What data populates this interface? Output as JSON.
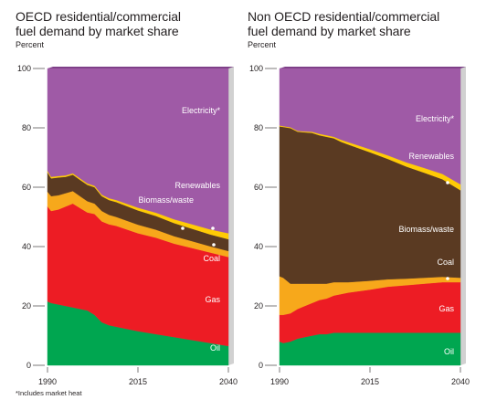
{
  "footnote": "*Includes market heat",
  "chart_data": [
    {
      "type": "area",
      "stacked": true,
      "title_line1": "OECD residential/commercial",
      "title_line2": "fuel demand by market share",
      "ylabel": "Percent",
      "ylim": [
        0,
        100
      ],
      "yticks": [
        "0",
        "20",
        "40",
        "60",
        "80",
        "100"
      ],
      "xticks": [
        "1990",
        "2015",
        "2040"
      ],
      "x": [
        1990,
        1991,
        1993,
        1995,
        1997,
        1999,
        2001,
        2003,
        2005,
        2007,
        2009,
        2015,
        2020,
        2025,
        2030,
        2035,
        2040
      ],
      "series": [
        {
          "name": "Oil",
          "color": "#00a650",
          "values": [
            21.5,
            21,
            20.5,
            20,
            19.5,
            19,
            18.5,
            17,
            14.5,
            13.5,
            13,
            11.5,
            10.5,
            9.5,
            8.5,
            7.5,
            6.5
          ]
        },
        {
          "name": "Gas",
          "color": "#ed1c24",
          "values": [
            32,
            31,
            32,
            33.5,
            35,
            34,
            33,
            34,
            34,
            34,
            34,
            33,
            32.5,
            31.5,
            31,
            30.5,
            30
          ]
        },
        {
          "name": "Coal",
          "color": "#f7a81b",
          "values": [
            5,
            5,
            4.8,
            4.5,
            4.2,
            4,
            3.8,
            3.5,
            3.5,
            3.2,
            3,
            2.9,
            2.7,
            2.5,
            2.3,
            2.1,
            2
          ]
        },
        {
          "name": "Biomass/waste",
          "color": "#5a3a22",
          "values": [
            6.5,
            6,
            6,
            5.5,
            5.5,
            5.5,
            5.5,
            5.5,
            5,
            5,
            5,
            4.8,
            4.6,
            4.4,
            4.2,
            4,
            4
          ]
        },
        {
          "name": "Renewables",
          "color": "#ffcb05",
          "values": [
            0.5,
            0.5,
            0.5,
            0.5,
            0.5,
            0.5,
            0.5,
            0.5,
            0.5,
            0.6,
            0.7,
            0.9,
            1.1,
            1.3,
            1.5,
            1.7,
            2
          ]
        },
        {
          "name": "Electricity*",
          "color": "#9f5aa6",
          "values": [
            34.5,
            36.5,
            36.2,
            36,
            35.3,
            37,
            38.7,
            39.5,
            42.5,
            43.7,
            44.3,
            46.9,
            48.6,
            50.8,
            52.5,
            54.2,
            55.5
          ]
        }
      ]
    },
    {
      "type": "area",
      "stacked": true,
      "title_line1": "Non OECD residential/commercial",
      "title_line2": "fuel demand by market share",
      "ylabel": "Percent",
      "ylim": [
        0,
        100
      ],
      "yticks": [
        "0",
        "20",
        "40",
        "60",
        "80",
        "100"
      ],
      "xticks": [
        "1990",
        "2015",
        "2040"
      ],
      "x": [
        1990,
        1991,
        1993,
        1995,
        1997,
        1999,
        2001,
        2003,
        2005,
        2007,
        2009,
        2015,
        2020,
        2025,
        2030,
        2035,
        2040
      ],
      "series": [
        {
          "name": "Oil",
          "color": "#00a650",
          "values": [
            8,
            7.5,
            8,
            9,
            9.5,
            10,
            10.5,
            10.5,
            11,
            11,
            11,
            11,
            11,
            11,
            11,
            11,
            11
          ]
        },
        {
          "name": "Gas",
          "color": "#ed1c24",
          "values": [
            9,
            9.5,
            9.5,
            10,
            10.5,
            11,
            11.5,
            12,
            12.5,
            13,
            13.5,
            14.5,
            15.5,
            16,
            16.5,
            17,
            17
          ]
        },
        {
          "name": "Coal",
          "color": "#f7a81b",
          "values": [
            13,
            12.5,
            10,
            8.5,
            7.5,
            6.5,
            5.5,
            5,
            4.5,
            4,
            3.5,
            3,
            2.5,
            2.2,
            2,
            1.8,
            1.5
          ]
        },
        {
          "name": "Biomass/waste",
          "color": "#5a3a22",
          "values": [
            50.5,
            50.8,
            52.4,
            51.2,
            51,
            50.8,
            50,
            49.5,
            48.5,
            47.3,
            46.4,
            43.3,
            40.5,
            37.8,
            35.4,
            32.9,
            29.5
          ]
        },
        {
          "name": "Renewables",
          "color": "#ffcb05",
          "values": [
            0.3,
            0.3,
            0.3,
            0.3,
            0.3,
            0.4,
            0.5,
            0.5,
            0.5,
            0.7,
            0.8,
            1,
            1.2,
            1.4,
            1.6,
            1.8,
            2
          ]
        },
        {
          "name": "Electricity*",
          "color": "#9f5aa6",
          "values": [
            19.2,
            19.4,
            19.8,
            21,
            21.2,
            21.3,
            22,
            22.5,
            23,
            24,
            24.8,
            27.2,
            29.3,
            31.6,
            33.5,
            35.5,
            39
          ]
        }
      ]
    }
  ]
}
